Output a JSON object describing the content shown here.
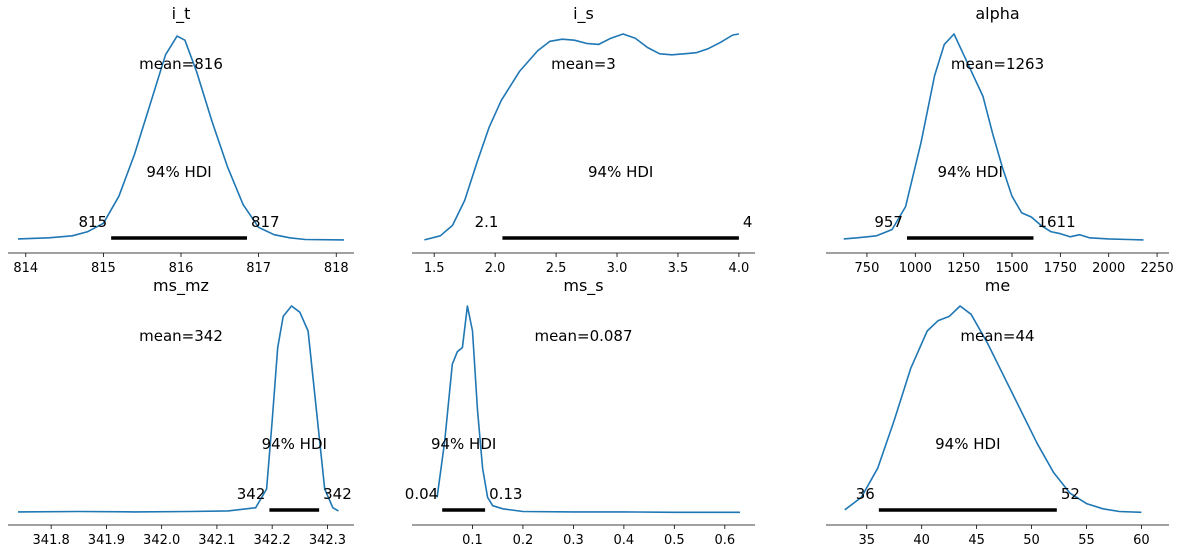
{
  "chart_data": [
    {
      "type": "line",
      "title": "i_t",
      "hdi_label": "94% HDI",
      "mean_label": "mean=816",
      "hdi": [
        815.1,
        816.85
      ],
      "hdi_low_label": "815",
      "hdi_high_label": "817",
      "xlim": [
        813.9,
        818.1
      ],
      "xticks": [
        814,
        815,
        816,
        817,
        818
      ],
      "xtick_labels": [
        "814",
        "815",
        "816",
        "817",
        "818"
      ],
      "x": [
        813.9,
        814.3,
        814.6,
        814.8,
        815.0,
        815.2,
        815.4,
        815.6,
        815.8,
        815.95,
        816.05,
        816.2,
        816.4,
        816.6,
        816.8,
        817.0,
        817.2,
        817.4,
        817.6,
        818.1
      ],
      "y": [
        0.015,
        0.02,
        0.03,
        0.05,
        0.09,
        0.22,
        0.42,
        0.66,
        0.9,
        0.99,
        0.97,
        0.82,
        0.58,
        0.36,
        0.18,
        0.07,
        0.035,
        0.02,
        0.012,
        0.01
      ]
    },
    {
      "type": "line",
      "title": "i_s",
      "hdi_label": "94% HDI",
      "mean_label": "mean=3",
      "hdi": [
        2.06,
        4.0
      ],
      "hdi_low_label": "2.1",
      "hdi_high_label": "4",
      "xlim": [
        1.4,
        4.05
      ],
      "xticks": [
        1.5,
        2.0,
        2.5,
        3.0,
        3.5,
        4.0
      ],
      "xtick_labels": [
        "1.5",
        "2.0",
        "2.5",
        "3.0",
        "3.5",
        "4.0"
      ],
      "x": [
        1.42,
        1.55,
        1.65,
        1.75,
        1.85,
        1.95,
        2.05,
        2.2,
        2.35,
        2.45,
        2.55,
        2.65,
        2.75,
        2.85,
        2.95,
        3.05,
        3.15,
        3.25,
        3.35,
        3.45,
        3.55,
        3.65,
        3.75,
        3.85,
        3.95,
        4.0
      ],
      "y": [
        0.01,
        0.03,
        0.08,
        0.2,
        0.38,
        0.55,
        0.68,
        0.82,
        0.92,
        0.965,
        0.975,
        0.97,
        0.955,
        0.95,
        0.98,
        1.0,
        0.98,
        0.935,
        0.905,
        0.9,
        0.905,
        0.91,
        0.93,
        0.96,
        0.995,
        1.0
      ]
    },
    {
      "type": "line",
      "title": "alpha",
      "hdi_label": "94% HDI",
      "mean_label": "mean=1263",
      "hdi": [
        957,
        1611
      ],
      "hdi_low_label": "957",
      "hdi_high_label": "1611",
      "xlim": [
        590,
        2260
      ],
      "xticks": [
        750,
        1000,
        1250,
        1500,
        1750,
        2000,
        2250
      ],
      "xtick_labels": [
        "750",
        "1000",
        "1250",
        "1500",
        "1750",
        "2000",
        "2250"
      ],
      "x": [
        630,
        700,
        800,
        880,
        950,
        1030,
        1100,
        1150,
        1200,
        1250,
        1300,
        1350,
        1400,
        1450,
        1500,
        1550,
        1600,
        1650,
        1700,
        1750,
        1800,
        1850,
        1900,
        2000,
        2100,
        2180
      ],
      "y": [
        0.015,
        0.02,
        0.03,
        0.06,
        0.17,
        0.48,
        0.8,
        0.95,
        1.0,
        0.9,
        0.8,
        0.7,
        0.52,
        0.36,
        0.22,
        0.14,
        0.12,
        0.08,
        0.05,
        0.04,
        0.025,
        0.035,
        0.02,
        0.015,
        0.012,
        0.01
      ]
    },
    {
      "type": "line",
      "title": "ms_mz",
      "hdi_label": "94% HDI",
      "mean_label": "mean=342",
      "hdi": [
        342.195,
        342.285
      ],
      "hdi_low_label": "342",
      "hdi_high_label": "342",
      "xlim": [
        341.74,
        342.33
      ],
      "xticks": [
        341.8,
        341.9,
        342.0,
        342.1,
        342.2,
        342.3
      ],
      "xtick_labels": [
        "341.8",
        "341.9",
        "342.0",
        "342.1",
        "342.2",
        "342.3"
      ],
      "x": [
        341.74,
        341.85,
        341.95,
        342.05,
        342.12,
        342.17,
        342.19,
        342.2,
        342.21,
        342.22,
        342.235,
        342.25,
        342.265,
        342.28,
        342.295,
        342.31,
        342.32
      ],
      "y": [
        0.01,
        0.012,
        0.01,
        0.012,
        0.015,
        0.03,
        0.12,
        0.45,
        0.8,
        0.95,
        1.0,
        0.97,
        0.88,
        0.5,
        0.12,
        0.03,
        0.015
      ]
    },
    {
      "type": "line",
      "title": "ms_s",
      "hdi_label": "94% HDI",
      "mean_label": "mean=0.087",
      "hdi": [
        0.04,
        0.125
      ],
      "hdi_low_label": "0.04",
      "hdi_high_label": "0.13",
      "xlim": [
        0.0,
        0.64
      ],
      "xticks": [
        0.1,
        0.2,
        0.3,
        0.4,
        0.5,
        0.6
      ],
      "xtick_labels": [
        "0.1",
        "0.2",
        "0.3",
        "0.4",
        "0.5",
        "0.6"
      ],
      "x": [
        0.03,
        0.045,
        0.06,
        0.07,
        0.08,
        0.09,
        0.1,
        0.11,
        0.12,
        0.13,
        0.14,
        0.16,
        0.2,
        0.3,
        0.4,
        0.5,
        0.6,
        0.63
      ],
      "y": [
        0.08,
        0.35,
        0.72,
        0.78,
        0.8,
        1.0,
        0.88,
        0.5,
        0.22,
        0.08,
        0.04,
        0.025,
        0.012,
        0.01,
        0.01,
        0.008,
        0.008,
        0.008
      ]
    },
    {
      "type": "line",
      "title": "me",
      "hdi_label": "94% HDI",
      "mean_label": "mean=44",
      "hdi": [
        36.1,
        52.3
      ],
      "hdi_low_label": "36",
      "hdi_high_label": "52",
      "xlim": [
        32.2,
        61.6
      ],
      "xticks": [
        35,
        40,
        45,
        50,
        55,
        60
      ],
      "xtick_labels": [
        "35",
        "40",
        "45",
        "50",
        "55",
        "60"
      ],
      "x": [
        33.0,
        34.5,
        36.0,
        37.5,
        39.0,
        40.5,
        41.5,
        42.5,
        43.5,
        44.5,
        46.0,
        47.5,
        49.0,
        50.5,
        52.0,
        53.5,
        55.0,
        56.5,
        58.0,
        60.0
      ],
      "y": [
        0.02,
        0.08,
        0.22,
        0.45,
        0.7,
        0.88,
        0.93,
        0.95,
        1.0,
        0.96,
        0.82,
        0.66,
        0.5,
        0.34,
        0.2,
        0.1,
        0.05,
        0.025,
        0.012,
        0.008
      ]
    }
  ]
}
